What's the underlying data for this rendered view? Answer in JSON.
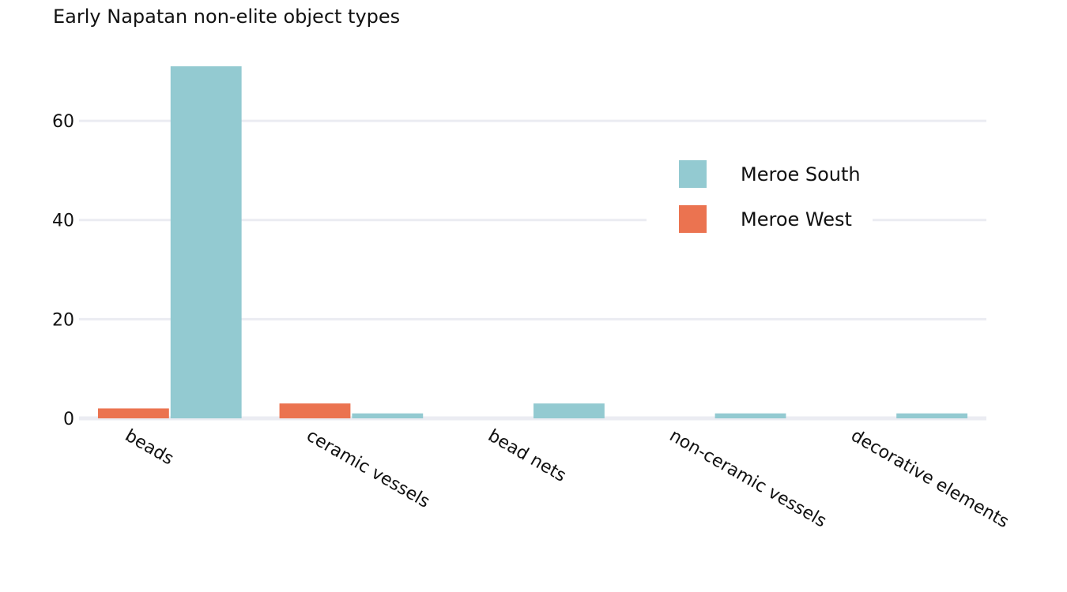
{
  "chart_data": {
    "type": "bar",
    "title": "Early Napatan non-elite object types",
    "xlabel": "",
    "ylabel": "",
    "categories": [
      "beads",
      "ceramic vessels",
      "bead nets",
      "non-ceramic vessels",
      "decorative elements"
    ],
    "series": [
      {
        "name": "Meroe West",
        "color": "#eb7350",
        "values": [
          2,
          3,
          0,
          0,
          0
        ]
      },
      {
        "name": "Meroe South",
        "color": "#93cad1",
        "values": [
          71,
          1,
          3,
          1,
          1
        ]
      }
    ],
    "ylim": [
      0,
      71
    ],
    "yticks": [
      0,
      20,
      40,
      60
    ],
    "ytick_labels": [
      "0",
      "20",
      "40",
      "60"
    ],
    "grid": true,
    "grid_color": "#ebecf2",
    "legend_position": "top-right",
    "legend_order": [
      "Meroe South",
      "Meroe West"
    ]
  }
}
